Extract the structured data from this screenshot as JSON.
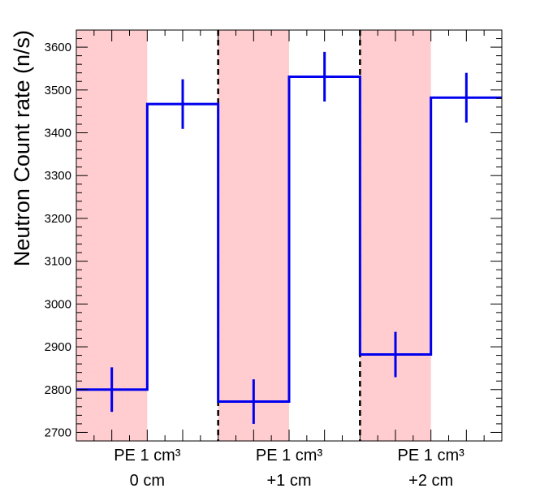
{
  "chart_data": {
    "type": "line",
    "title": "",
    "xlabel": "",
    "ylabel": "Neutron Count rate (n/s)",
    "ylim": [
      2680,
      3640
    ],
    "yticks": [
      2700,
      2800,
      2900,
      3000,
      3100,
      3200,
      3300,
      3400,
      3500,
      3600
    ],
    "grid": false,
    "groups": [
      {
        "label_line1": "PE 1 cm³",
        "label_line2": "0 cm"
      },
      {
        "label_line1": "PE 1 cm³",
        "label_line2": "+1 cm"
      },
      {
        "label_line1": "PE 1 cm³",
        "label_line2": "+2 cm"
      }
    ],
    "bins": [
      {
        "value": 2800,
        "error": 52,
        "shaded": true
      },
      {
        "value": 3467,
        "error": 58,
        "shaded": false
      },
      {
        "value": 2772,
        "error": 52,
        "shaded": true
      },
      {
        "value": 3531,
        "error": 58,
        "shaded": false
      },
      {
        "value": 2882,
        "error": 53,
        "shaded": true
      },
      {
        "value": 3482,
        "error": 58,
        "shaded": false
      }
    ],
    "colors": {
      "line": "#0000ee",
      "shade": "#ffcccf",
      "separator": "#000000"
    }
  }
}
